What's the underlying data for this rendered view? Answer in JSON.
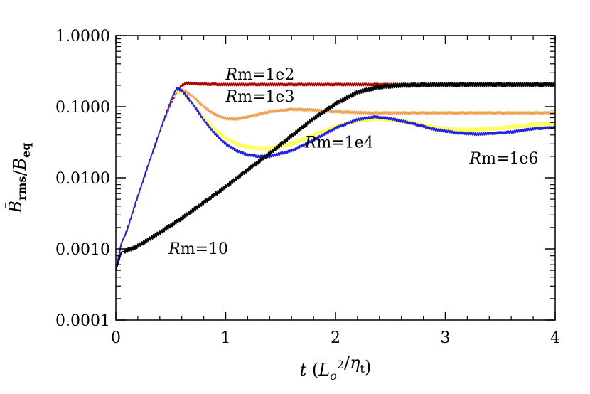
{
  "chart_data": {
    "type": "line",
    "xlabel": "t (L₀²/η_t)",
    "ylabel": "B̄_rms/B_eq",
    "xlim": [
      0,
      4
    ],
    "ylim": [
      0.0001,
      1.0
    ],
    "yscale": "log",
    "x_ticks": [
      "0",
      "1",
      "2",
      "3",
      "4"
    ],
    "y_ticks": [
      "0.0001",
      "0.0010",
      "0.0100",
      "0.1000",
      "1.0000"
    ],
    "grid": false,
    "legend": "none",
    "series": [
      {
        "name": "Rm=1e2",
        "color": "#b00000",
        "label": "Rm=1e2",
        "x": [
          0.0,
          0.05,
          0.1,
          0.2,
          0.3,
          0.4,
          0.5,
          0.55,
          0.6,
          0.65,
          0.7,
          0.8,
          1.0,
          1.5,
          2.0,
          2.5,
          3.0,
          3.5,
          4.0
        ],
        "y": [
          0.0005,
          0.0012,
          0.0018,
          0.0055,
          0.016,
          0.045,
          0.11,
          0.16,
          0.2,
          0.215,
          0.212,
          0.208,
          0.205,
          0.205,
          0.205,
          0.205,
          0.205,
          0.205,
          0.205
        ]
      },
      {
        "name": "Rm=1e3",
        "color": "#f0a050",
        "label": "Rm=1e3",
        "x": [
          0.0,
          0.05,
          0.1,
          0.2,
          0.3,
          0.4,
          0.5,
          0.55,
          0.6,
          0.7,
          0.8,
          0.9,
          1.0,
          1.1,
          1.2,
          1.4,
          1.6,
          1.8,
          2.0,
          2.3,
          2.6,
          3.0,
          3.5,
          4.0
        ],
        "y": [
          0.0005,
          0.0012,
          0.0018,
          0.0055,
          0.016,
          0.045,
          0.12,
          0.17,
          0.175,
          0.14,
          0.1,
          0.078,
          0.068,
          0.067,
          0.072,
          0.085,
          0.092,
          0.09,
          0.085,
          0.082,
          0.082,
          0.082,
          0.082,
          0.082
        ]
      },
      {
        "name": "Rm=1e6",
        "color": "#ffff60",
        "label": "Rm=1e6",
        "x": [
          0.0,
          0.05,
          0.1,
          0.2,
          0.3,
          0.4,
          0.5,
          0.55,
          0.6,
          0.7,
          0.8,
          0.9,
          1.0,
          1.1,
          1.2,
          1.3,
          1.4,
          1.6,
          1.8,
          2.0,
          2.2,
          2.4,
          2.6,
          2.8,
          3.0,
          3.2,
          3.5,
          3.8,
          4.0
        ],
        "y": [
          0.0005,
          0.0012,
          0.0018,
          0.0055,
          0.016,
          0.045,
          0.12,
          0.17,
          0.16,
          0.11,
          0.07,
          0.048,
          0.036,
          0.03,
          0.027,
          0.026,
          0.026,
          0.03,
          0.04,
          0.052,
          0.064,
          0.068,
          0.063,
          0.055,
          0.048,
          0.047,
          0.05,
          0.056,
          0.058
        ]
      },
      {
        "name": "Rm=1e4",
        "color": "#2020e0",
        "label": "Rm=1e4",
        "x": [
          0.0,
          0.05,
          0.1,
          0.2,
          0.3,
          0.4,
          0.5,
          0.55,
          0.6,
          0.7,
          0.8,
          0.9,
          1.0,
          1.1,
          1.2,
          1.3,
          1.4,
          1.6,
          1.8,
          2.0,
          2.2,
          2.35,
          2.5,
          2.7,
          2.9,
          3.1,
          3.3,
          3.6,
          3.8,
          4.0
        ],
        "y": [
          0.0005,
          0.0012,
          0.0018,
          0.0055,
          0.016,
          0.045,
          0.12,
          0.18,
          0.17,
          0.11,
          0.065,
          0.042,
          0.03,
          0.024,
          0.021,
          0.02,
          0.02,
          0.024,
          0.034,
          0.05,
          0.066,
          0.072,
          0.068,
          0.058,
          0.048,
          0.043,
          0.041,
          0.044,
          0.049,
          0.051
        ]
      },
      {
        "name": "Rm=10",
        "color": "#000000",
        "label": "Rm=10",
        "x": [
          0.0,
          0.05,
          0.1,
          0.2,
          0.4,
          0.6,
          0.8,
          1.0,
          1.2,
          1.4,
          1.6,
          1.8,
          2.0,
          2.2,
          2.4,
          2.6,
          3.0,
          3.5,
          4.0
        ],
        "y": [
          0.0005,
          0.0009,
          0.00095,
          0.0011,
          0.0017,
          0.0027,
          0.0045,
          0.0075,
          0.013,
          0.022,
          0.039,
          0.068,
          0.11,
          0.16,
          0.19,
          0.2,
          0.205,
          0.205,
          0.205
        ]
      }
    ]
  }
}
